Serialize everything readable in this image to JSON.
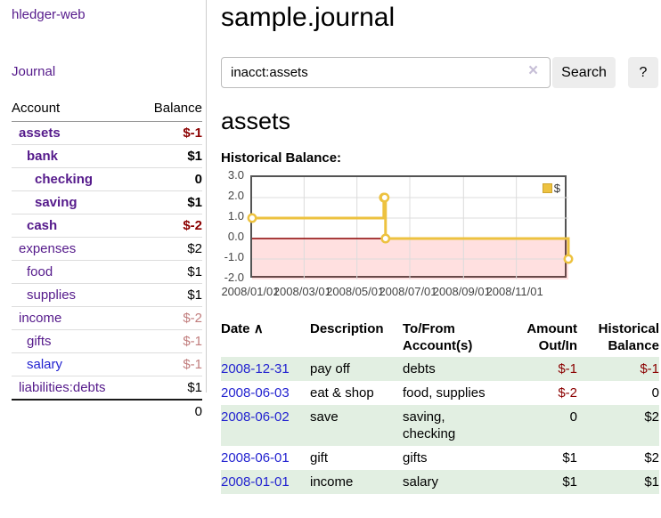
{
  "brand": "hledger-web",
  "sidebar": {
    "journal_link": "Journal",
    "accounts_table": {
      "headers": {
        "account": "Account",
        "balance": "Balance"
      },
      "rows": [
        {
          "name": "assets",
          "balance": "$-1"
        },
        {
          "name": "bank",
          "balance": "$1"
        },
        {
          "name": "checking",
          "balance": "0"
        },
        {
          "name": "saving",
          "balance": "$1"
        },
        {
          "name": "cash",
          "balance": "$-2"
        },
        {
          "name": "expenses",
          "balance": "$2"
        },
        {
          "name": "food",
          "balance": "$1"
        },
        {
          "name": "supplies",
          "balance": "$1"
        },
        {
          "name": "income",
          "balance": "$-2"
        },
        {
          "name": "gifts",
          "balance": "$-1"
        },
        {
          "name": "salary",
          "balance": "$-1"
        },
        {
          "name": "liabilities:debts",
          "balance": "$1"
        }
      ],
      "total": "0"
    }
  },
  "main": {
    "title": "sample.journal",
    "search": {
      "value": "inacct:assets",
      "clear_icon": "×",
      "search_button": "Search",
      "help_button": "?"
    },
    "account_heading": "assets",
    "chart_heading": "Historical Balance:"
  },
  "chart_data": {
    "type": "line",
    "title": "Historical Balance:",
    "step": true,
    "series": [
      {
        "name": "$",
        "color": "#edc240",
        "points": [
          [
            "2008-01-01",
            1
          ],
          [
            "2008-06-01",
            2
          ],
          [
            "2008-06-02",
            2
          ],
          [
            "2008-06-03",
            0
          ],
          [
            "2008-12-31",
            -1
          ]
        ]
      }
    ],
    "x_range": [
      "2008/01/01",
      "2008/12/31"
    ],
    "x_ticks": [
      "2008/01/01",
      "2008/03/01",
      "2008/05/01",
      "2008/07/01",
      "2008/09/01",
      "2008/11/01"
    ],
    "y_ticks": [
      "3.0",
      "2.0",
      "1.0",
      "0.0",
      "-1.0",
      "-2.0"
    ],
    "ylim": [
      -2,
      3
    ],
    "grid": true,
    "legend_position": "top-right",
    "negative_region_color": "rgba(255,0,0,0.12)",
    "zero_line_color": "#8b0000",
    "grid_line_color": "#dcdcdc"
  },
  "register": {
    "headers": {
      "date": "Date",
      "description": "Description",
      "accounts": "To/From\nAccount(s)",
      "amount": "Amount\nOut/In",
      "balance": "Historical\nBalance"
    },
    "sort_indicator": "∧",
    "rows": [
      {
        "date": "2008-12-31",
        "description": "pay off",
        "accounts": "debts",
        "amount": "$-1",
        "balance": "$-1"
      },
      {
        "date": "2008-06-03",
        "description": "eat & shop",
        "accounts": "food, supplies",
        "amount": "$-2",
        "balance": "0"
      },
      {
        "date": "2008-06-02",
        "description": "save",
        "accounts": "saving,\nchecking",
        "amount": "0",
        "balance": "$2"
      },
      {
        "date": "2008-06-01",
        "description": "gift",
        "accounts": "gifts",
        "amount": "$1",
        "balance": "$2"
      },
      {
        "date": "2008-01-01",
        "description": "income",
        "accounts": "salary",
        "amount": "$1",
        "balance": "$1"
      }
    ]
  },
  "colors": {
    "series_gold": "#edc240",
    "negative_strong": "#8b0000",
    "negative_soft": "#c17d7d",
    "link_purple": "#551a8b",
    "link_blue": "#2323d0",
    "row_stripe_green": "#e2efe2"
  }
}
